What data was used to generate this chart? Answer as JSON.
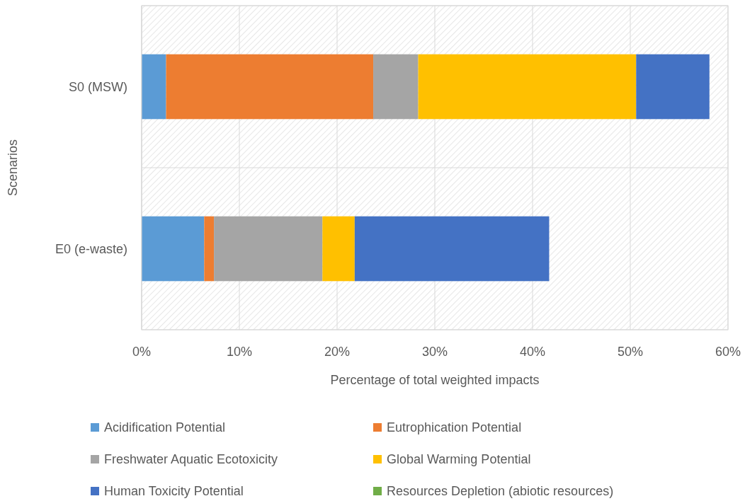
{
  "chart_data": {
    "type": "bar",
    "orientation": "horizontal",
    "stacked": true,
    "xlabel": "Percentage of total weighted impacts",
    "ylabel": "Scenarios",
    "categories": [
      "S0 (MSW)",
      "E0 (e-waste)"
    ],
    "series": [
      {
        "name": "Acidification Potential",
        "color": "#5b9bd5",
        "values": [
          2.5,
          6.4
        ]
      },
      {
        "name": "Eutrophication Potential",
        "color": "#ed7d31",
        "values": [
          21.2,
          1.0
        ]
      },
      {
        "name": "Freshwater Aquatic Ecotoxicity",
        "color": "#a5a5a5",
        "values": [
          4.6,
          11.1
        ]
      },
      {
        "name": "Global Warming Potential",
        "color": "#ffc000",
        "values": [
          22.3,
          3.3
        ]
      },
      {
        "name": "Human Toxicity Potential",
        "color": "#4472c4",
        "values": [
          7.5,
          19.9
        ]
      },
      {
        "name": "Resources Depletion (abiotic resources)",
        "color": "#70ad47",
        "values": [
          0,
          0
        ]
      }
    ],
    "xlim": [
      0,
      60
    ],
    "xticks": [
      {
        "value": 0,
        "label": "0%"
      },
      {
        "value": 10,
        "label": "10%"
      },
      {
        "value": 20,
        "label": "20%"
      },
      {
        "value": 30,
        "label": "30%"
      },
      {
        "value": 40,
        "label": "40%"
      },
      {
        "value": 50,
        "label": "50%"
      },
      {
        "value": 60,
        "label": "60%"
      }
    ],
    "grid": "x",
    "legend": "bottom"
  }
}
